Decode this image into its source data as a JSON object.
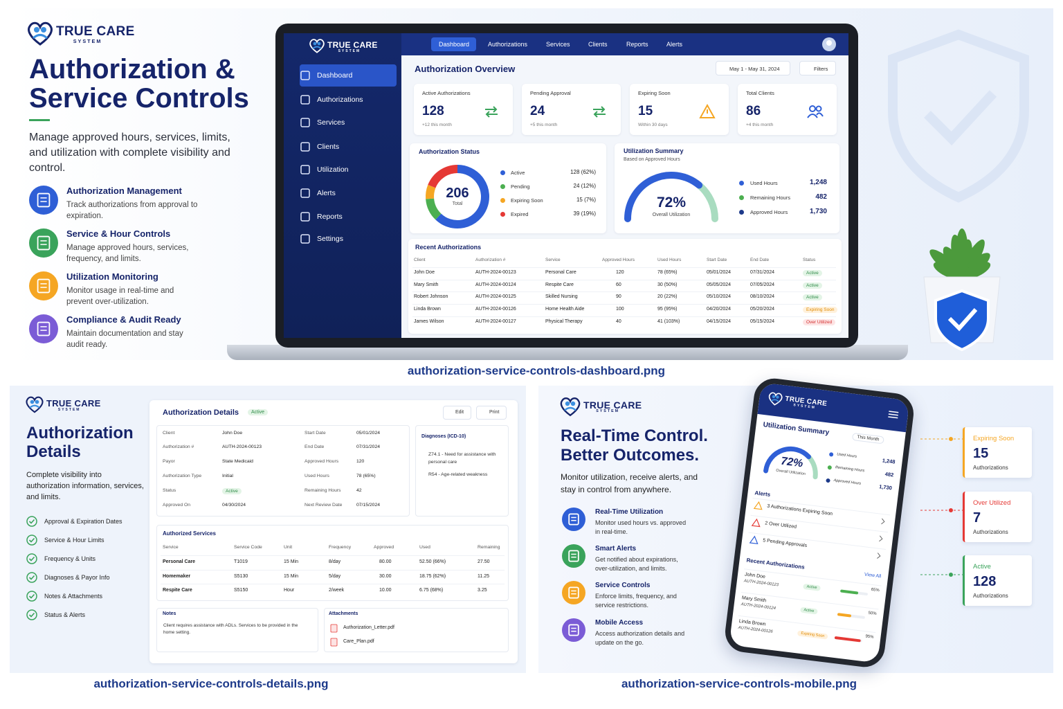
{
  "brand": {
    "name": "TRUE CARE",
    "tagline": "SYSTEM"
  },
  "dashboard_promo": {
    "title_line1": "Authorization &",
    "title_line2": "Service Controls",
    "subtitle": "Manage approved hours, services, limits, and utilization with complete visibility and control.",
    "features": [
      {
        "title": "Authorization Management",
        "text": "Track authorizations from approval to expiration."
      },
      {
        "title": "Service & Hour Controls",
        "text": "Manage approved hours, services, frequency, and limits."
      },
      {
        "title": "Utilization Monitoring",
        "text": "Monitor usage in real-time and prevent over-utilization."
      },
      {
        "title": "Compliance & Audit Ready",
        "text": "Maintain documentation and stay audit ready."
      }
    ]
  },
  "dashboard": {
    "top_nav": [
      "Dashboard",
      "Authorizations",
      "Services",
      "Clients",
      "Reports",
      "Alerts"
    ],
    "side_nav": [
      "Dashboard",
      "Authorizations",
      "Services",
      "Clients",
      "Utilization",
      "Alerts",
      "Reports",
      "Settings"
    ],
    "heading": "Authorization Overview",
    "date_range": "May 1 - May 31, 2024",
    "filters": "Filters",
    "kpis": [
      {
        "label": "Active Authorizations",
        "value": 128,
        "note": "+12 this month"
      },
      {
        "label": "Pending Approval",
        "value": 24,
        "note": "+5 this month"
      },
      {
        "label": "Expiring Soon",
        "value": 15,
        "note": "Within 30 days"
      },
      {
        "label": "Total Clients",
        "value": 86,
        "note": "+4 this month"
      }
    ],
    "status": {
      "title": "Authorization Status",
      "total": 206,
      "total_label": "Total",
      "items": [
        {
          "label": "Active",
          "count": 128,
          "text": "128 (62%)"
        },
        {
          "label": "Pending",
          "count": 24,
          "text": "24 (12%)"
        },
        {
          "label": "Expiring Soon",
          "count": 15,
          "text": "15 (7%)"
        },
        {
          "label": "Expired",
          "count": 39,
          "text": "39 (19%)"
        }
      ]
    },
    "utilization": {
      "title": "Utilization Summary",
      "subtitle": "Based on Approved Hours",
      "overall": {
        "value": 72,
        "label": "72%"
      },
      "overall_label": "Overall Utilization",
      "items": [
        {
          "label": "Used Hours",
          "value": "1,248"
        },
        {
          "label": "Remaining Hours",
          "value": "482"
        },
        {
          "label": "Approved Hours",
          "value": "1,730"
        }
      ]
    },
    "recent": {
      "title": "Recent Authorizations",
      "columns": [
        "Client",
        "Authorization #",
        "Service",
        "Approved Hours",
        "Used Hours",
        "Start Date",
        "End Date",
        "Status"
      ],
      "rows": [
        [
          "John Doe",
          "AUTH-2024-00123",
          "Personal Care",
          "120",
          "78 (65%)",
          "05/01/2024",
          "07/31/2024",
          "Active"
        ],
        [
          "Mary Smith",
          "AUTH-2024-00124",
          "Respite Care",
          "60",
          "30 (50%)",
          "05/05/2024",
          "07/05/2024",
          "Active"
        ],
        [
          "Robert Johnson",
          "AUTH-2024-00125",
          "Skilled Nursing",
          "90",
          "20 (22%)",
          "05/10/2024",
          "08/10/2024",
          "Active"
        ],
        [
          "Linda Brown",
          "AUTH-2024-00126",
          "Home Health Aide",
          "100",
          "95 (95%)",
          "04/20/2024",
          "05/20/2024",
          "Expiring Soon"
        ],
        [
          "James Wilson",
          "AUTH-2024-00127",
          "Physical Therapy",
          "40",
          "41 (103%)",
          "04/15/2024",
          "05/15/2024",
          "Over Utilized"
        ]
      ]
    }
  },
  "caption_dashboard": "authorization-service-controls-dashboard.png",
  "details_promo": {
    "title_line1": "Authorization",
    "title_line2": "Details",
    "subtitle": "Complete visibility into authorization information, services, and limits.",
    "checklist": [
      "Approval & Expiration Dates",
      "Service & Hour Limits",
      "Frequency & Units",
      "Diagnoses & Payor Info",
      "Notes & Attachments",
      "Status & Alerts"
    ]
  },
  "details": {
    "title": "Authorization Details",
    "status": "Active",
    "edit": "Edit",
    "print": "Print",
    "fields_left": [
      {
        "label": "Client",
        "value": "John Doe"
      },
      {
        "label": "Authorization #",
        "value": "AUTH-2024-00123"
      },
      {
        "label": "Payor",
        "value": "State Medicaid"
      },
      {
        "label": "Authorization Type",
        "value": "Initial"
      },
      {
        "label": "Status",
        "value": "Active"
      },
      {
        "label": "Approved On",
        "value": "04/30/2024"
      }
    ],
    "fields_right": [
      {
        "label": "Start Date",
        "value": "05/01/2024"
      },
      {
        "label": "End Date",
        "value": "07/31/2024"
      },
      {
        "label": "Approved Hours",
        "value": "120"
      },
      {
        "label": "Used Hours",
        "value": "78 (65%)"
      },
      {
        "label": "Remaining Hours",
        "value": "42"
      },
      {
        "label": "Next Review Date",
        "value": "07/15/2024"
      }
    ],
    "diagnoses_title": "Diagnoses (ICD-10)",
    "diagnoses": [
      "Z74.1 - Need for assistance with personal care",
      "R54 - Age-related weakness"
    ],
    "services_title": "Authorized Services",
    "services_columns": [
      "Service",
      "Service Code",
      "Unit",
      "Frequency",
      "Approved",
      "Used",
      "Remaining"
    ],
    "services_rows": [
      [
        "Personal Care",
        "T1019",
        "15 Min",
        "8/day",
        "80.00",
        "52.50 (66%)",
        "27.50"
      ],
      [
        "Homemaker",
        "S5130",
        "15 Min",
        "5/day",
        "30.00",
        "18.75 (62%)",
        "11.25"
      ],
      [
        "Respite Care",
        "S5150",
        "Hour",
        "2/week",
        "10.00",
        "6.75 (68%)",
        "3.25"
      ]
    ],
    "notes_title": "Notes",
    "notes": "Client requires assistance with ADLs. Services to be provided in the home setting.",
    "attachments_title": "Attachments",
    "attachments": [
      "Authorization_Letter.pdf",
      "Care_Plan.pdf"
    ]
  },
  "caption_details": "authorization-service-controls-details.png",
  "mobile_promo": {
    "title_line1": "Real-Time Control.",
    "title_line2": "Better Outcomes.",
    "subtitle": "Monitor utilization, receive alerts, and stay in control from anywhere.",
    "features": [
      {
        "title": "Real-Time Utilization",
        "text": "Monitor used hours vs. approved in real-time."
      },
      {
        "title": "Smart Alerts",
        "text": "Get notified about expirations, over-utilization, and limits."
      },
      {
        "title": "Service Controls",
        "text": "Enforce limits, frequency, and service restrictions."
      },
      {
        "title": "Mobile Access",
        "text": "Access authorization details and update on the go."
      }
    ]
  },
  "phone": {
    "title": "Utilization Summary",
    "period": "This Month",
    "overall": {
      "value": 72,
      "label": "72%"
    },
    "overall_label": "Overall Utilization",
    "items": [
      {
        "label": "Used Hours",
        "value": "1,248"
      },
      {
        "label": "Remaining Hours",
        "value": "482"
      },
      {
        "label": "Approved Hours",
        "value": "1,730"
      }
    ],
    "alerts_title": "Alerts",
    "alerts": [
      "3 Authorizations Expiring Soon",
      "2 Over Utilized",
      "5 Pending Approvals"
    ],
    "recent_title": "Recent Authorizations",
    "view_all": "View All",
    "recent": [
      {
        "name": "John Doe",
        "id": "AUTH-2024-00123",
        "status": "Active",
        "pct": {
          "value": 65,
          "label": "65%"
        }
      },
      {
        "name": "Mary Smith",
        "id": "AUTH-2024-00124",
        "status": "Active",
        "pct": {
          "value": 50,
          "label": "50%"
        }
      },
      {
        "name": "Linda Brown",
        "id": "AUTH-2024-00126",
        "status": "Expiring Soon",
        "pct": {
          "value": 95,
          "label": "95%"
        }
      }
    ]
  },
  "alert_cards": [
    {
      "title": "Expiring Soon",
      "value": 15,
      "note": "Authorizations"
    },
    {
      "title": "Over Utilized",
      "value": 7,
      "note": "Authorizations"
    },
    {
      "title": "Active",
      "value": 128,
      "note": "Authorizations"
    }
  ],
  "caption_mobile": "authorization-service-controls-mobile.png"
}
